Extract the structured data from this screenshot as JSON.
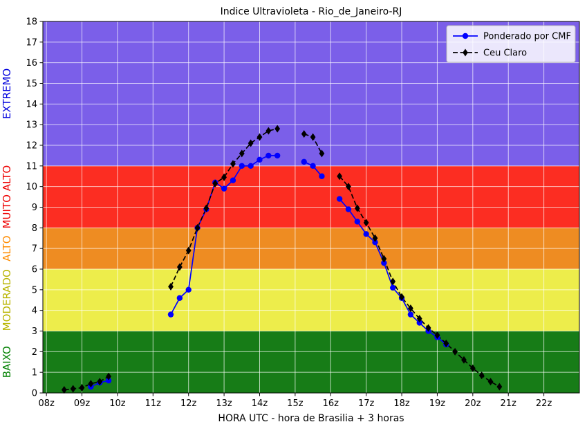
{
  "chart_data": {
    "type": "line",
    "title": "Indice Ultravioleta - Rio_de_Janeiro-RJ",
    "xlabel": "HORA UTC - hora de Brasilia + 3 horas",
    "ylabel": "",
    "xlim": [
      7.9,
      23.0
    ],
    "ylim": [
      0,
      18
    ],
    "grid": true,
    "grid_color": "rgba(255,255,255,0.7)",
    "legend_position": "upper right",
    "x_ticks": [
      {
        "value": 8,
        "label": "08z"
      },
      {
        "value": 9,
        "label": "09z"
      },
      {
        "value": 10,
        "label": "10z"
      },
      {
        "value": 11,
        "label": "11z"
      },
      {
        "value": 12,
        "label": "12z"
      },
      {
        "value": 13,
        "label": "13z"
      },
      {
        "value": 14,
        "label": "14z"
      },
      {
        "value": 15,
        "label": "15z"
      },
      {
        "value": 16,
        "label": "16z"
      },
      {
        "value": 17,
        "label": "17z"
      },
      {
        "value": 18,
        "label": "18z"
      },
      {
        "value": 19,
        "label": "19z"
      },
      {
        "value": 20,
        "label": "20z"
      },
      {
        "value": 21,
        "label": "21z"
      },
      {
        "value": 22,
        "label": "22z"
      }
    ],
    "y_ticks": [
      0,
      1,
      2,
      3,
      4,
      5,
      6,
      7,
      8,
      9,
      10,
      11,
      12,
      13,
      14,
      15,
      16,
      17,
      18
    ],
    "bands": [
      {
        "label": "BAIXO",
        "from": 0,
        "to": 3,
        "color": "#177c17",
        "label_color": "#008000"
      },
      {
        "label": "MODERADO",
        "from": 3,
        "to": 6,
        "color": "#eded4b",
        "label_color": "#b8b400"
      },
      {
        "label": "ALTO",
        "from": 6,
        "to": 8,
        "color": "#ee8c22",
        "label_color": "#ff8c00"
      },
      {
        "label": "MUITO ALTO",
        "from": 8,
        "to": 11,
        "color": "#fc2d22",
        "label_color": "#ee0000"
      },
      {
        "label": "EXTREMO",
        "from": 11,
        "to": 18,
        "color": "#7b5fe9",
        "label_color": "#0000dd"
      }
    ],
    "series": [
      {
        "name": "Ponderado por CMF",
        "color": "#0000ff",
        "marker": "circle",
        "line_style": "solid",
        "segments": [
          [
            [
              9.25,
              0.3
            ],
            [
              9.5,
              0.5
            ],
            [
              9.75,
              0.6
            ]
          ],
          [
            [
              11.5,
              3.8
            ],
            [
              11.75,
              4.6
            ],
            [
              12.0,
              5.0
            ],
            [
              12.25,
              8.0
            ],
            [
              12.5,
              8.9
            ],
            [
              12.75,
              10.2
            ],
            [
              13.0,
              9.9
            ],
            [
              13.25,
              10.3
            ],
            [
              13.5,
              11.0
            ],
            [
              13.75,
              11.0
            ],
            [
              14.0,
              11.3
            ],
            [
              14.25,
              11.5
            ],
            [
              14.5,
              11.5
            ]
          ],
          [
            [
              15.25,
              11.2
            ],
            [
              15.5,
              11.0
            ],
            [
              15.75,
              10.5
            ]
          ],
          [
            [
              16.25,
              9.4
            ],
            [
              16.5,
              8.9
            ],
            [
              16.75,
              8.3
            ],
            [
              17.0,
              7.7
            ],
            [
              17.25,
              7.3
            ],
            [
              17.5,
              6.3
            ],
            [
              17.75,
              5.1
            ],
            [
              18.0,
              4.6
            ],
            [
              18.25,
              3.8
            ],
            [
              18.5,
              3.4
            ],
            [
              18.75,
              3.0
            ],
            [
              19.0,
              2.7
            ],
            [
              19.25,
              2.35
            ]
          ]
        ]
      },
      {
        "name": "Ceu Claro",
        "color": "#000000",
        "marker": "diamond",
        "line_style": "dashed",
        "segments": [
          [
            [
              8.5,
              0.15
            ],
            [
              8.75,
              0.2
            ],
            [
              9.0,
              0.25
            ],
            [
              9.25,
              0.45
            ],
            [
              9.5,
              0.55
            ],
            [
              9.75,
              0.8
            ]
          ],
          [
            [
              11.5,
              5.15
            ],
            [
              11.75,
              6.1
            ],
            [
              12.0,
              6.9
            ],
            [
              12.25,
              8.0
            ],
            [
              12.5,
              8.95
            ],
            [
              12.75,
              10.15
            ],
            [
              13.0,
              10.45
            ],
            [
              13.25,
              11.1
            ],
            [
              13.5,
              11.6
            ],
            [
              13.75,
              12.1
            ],
            [
              14.0,
              12.4
            ],
            [
              14.25,
              12.7
            ],
            [
              14.5,
              12.8
            ]
          ],
          [
            [
              15.25,
              12.55
            ],
            [
              15.5,
              12.4
            ],
            [
              15.75,
              11.6
            ]
          ],
          [
            [
              16.25,
              10.5
            ],
            [
              16.5,
              10.0
            ],
            [
              16.75,
              8.95
            ],
            [
              17.0,
              8.25
            ],
            [
              17.25,
              7.5
            ],
            [
              17.5,
              6.5
            ],
            [
              17.75,
              5.4
            ],
            [
              18.0,
              4.65
            ],
            [
              18.25,
              4.1
            ],
            [
              18.5,
              3.6
            ],
            [
              18.75,
              3.15
            ],
            [
              19.0,
              2.8
            ],
            [
              19.25,
              2.4
            ],
            [
              19.5,
              2.0
            ],
            [
              19.75,
              1.6
            ],
            [
              20.0,
              1.2
            ],
            [
              20.25,
              0.85
            ],
            [
              20.5,
              0.55
            ],
            [
              20.75,
              0.3
            ]
          ]
        ]
      }
    ]
  }
}
